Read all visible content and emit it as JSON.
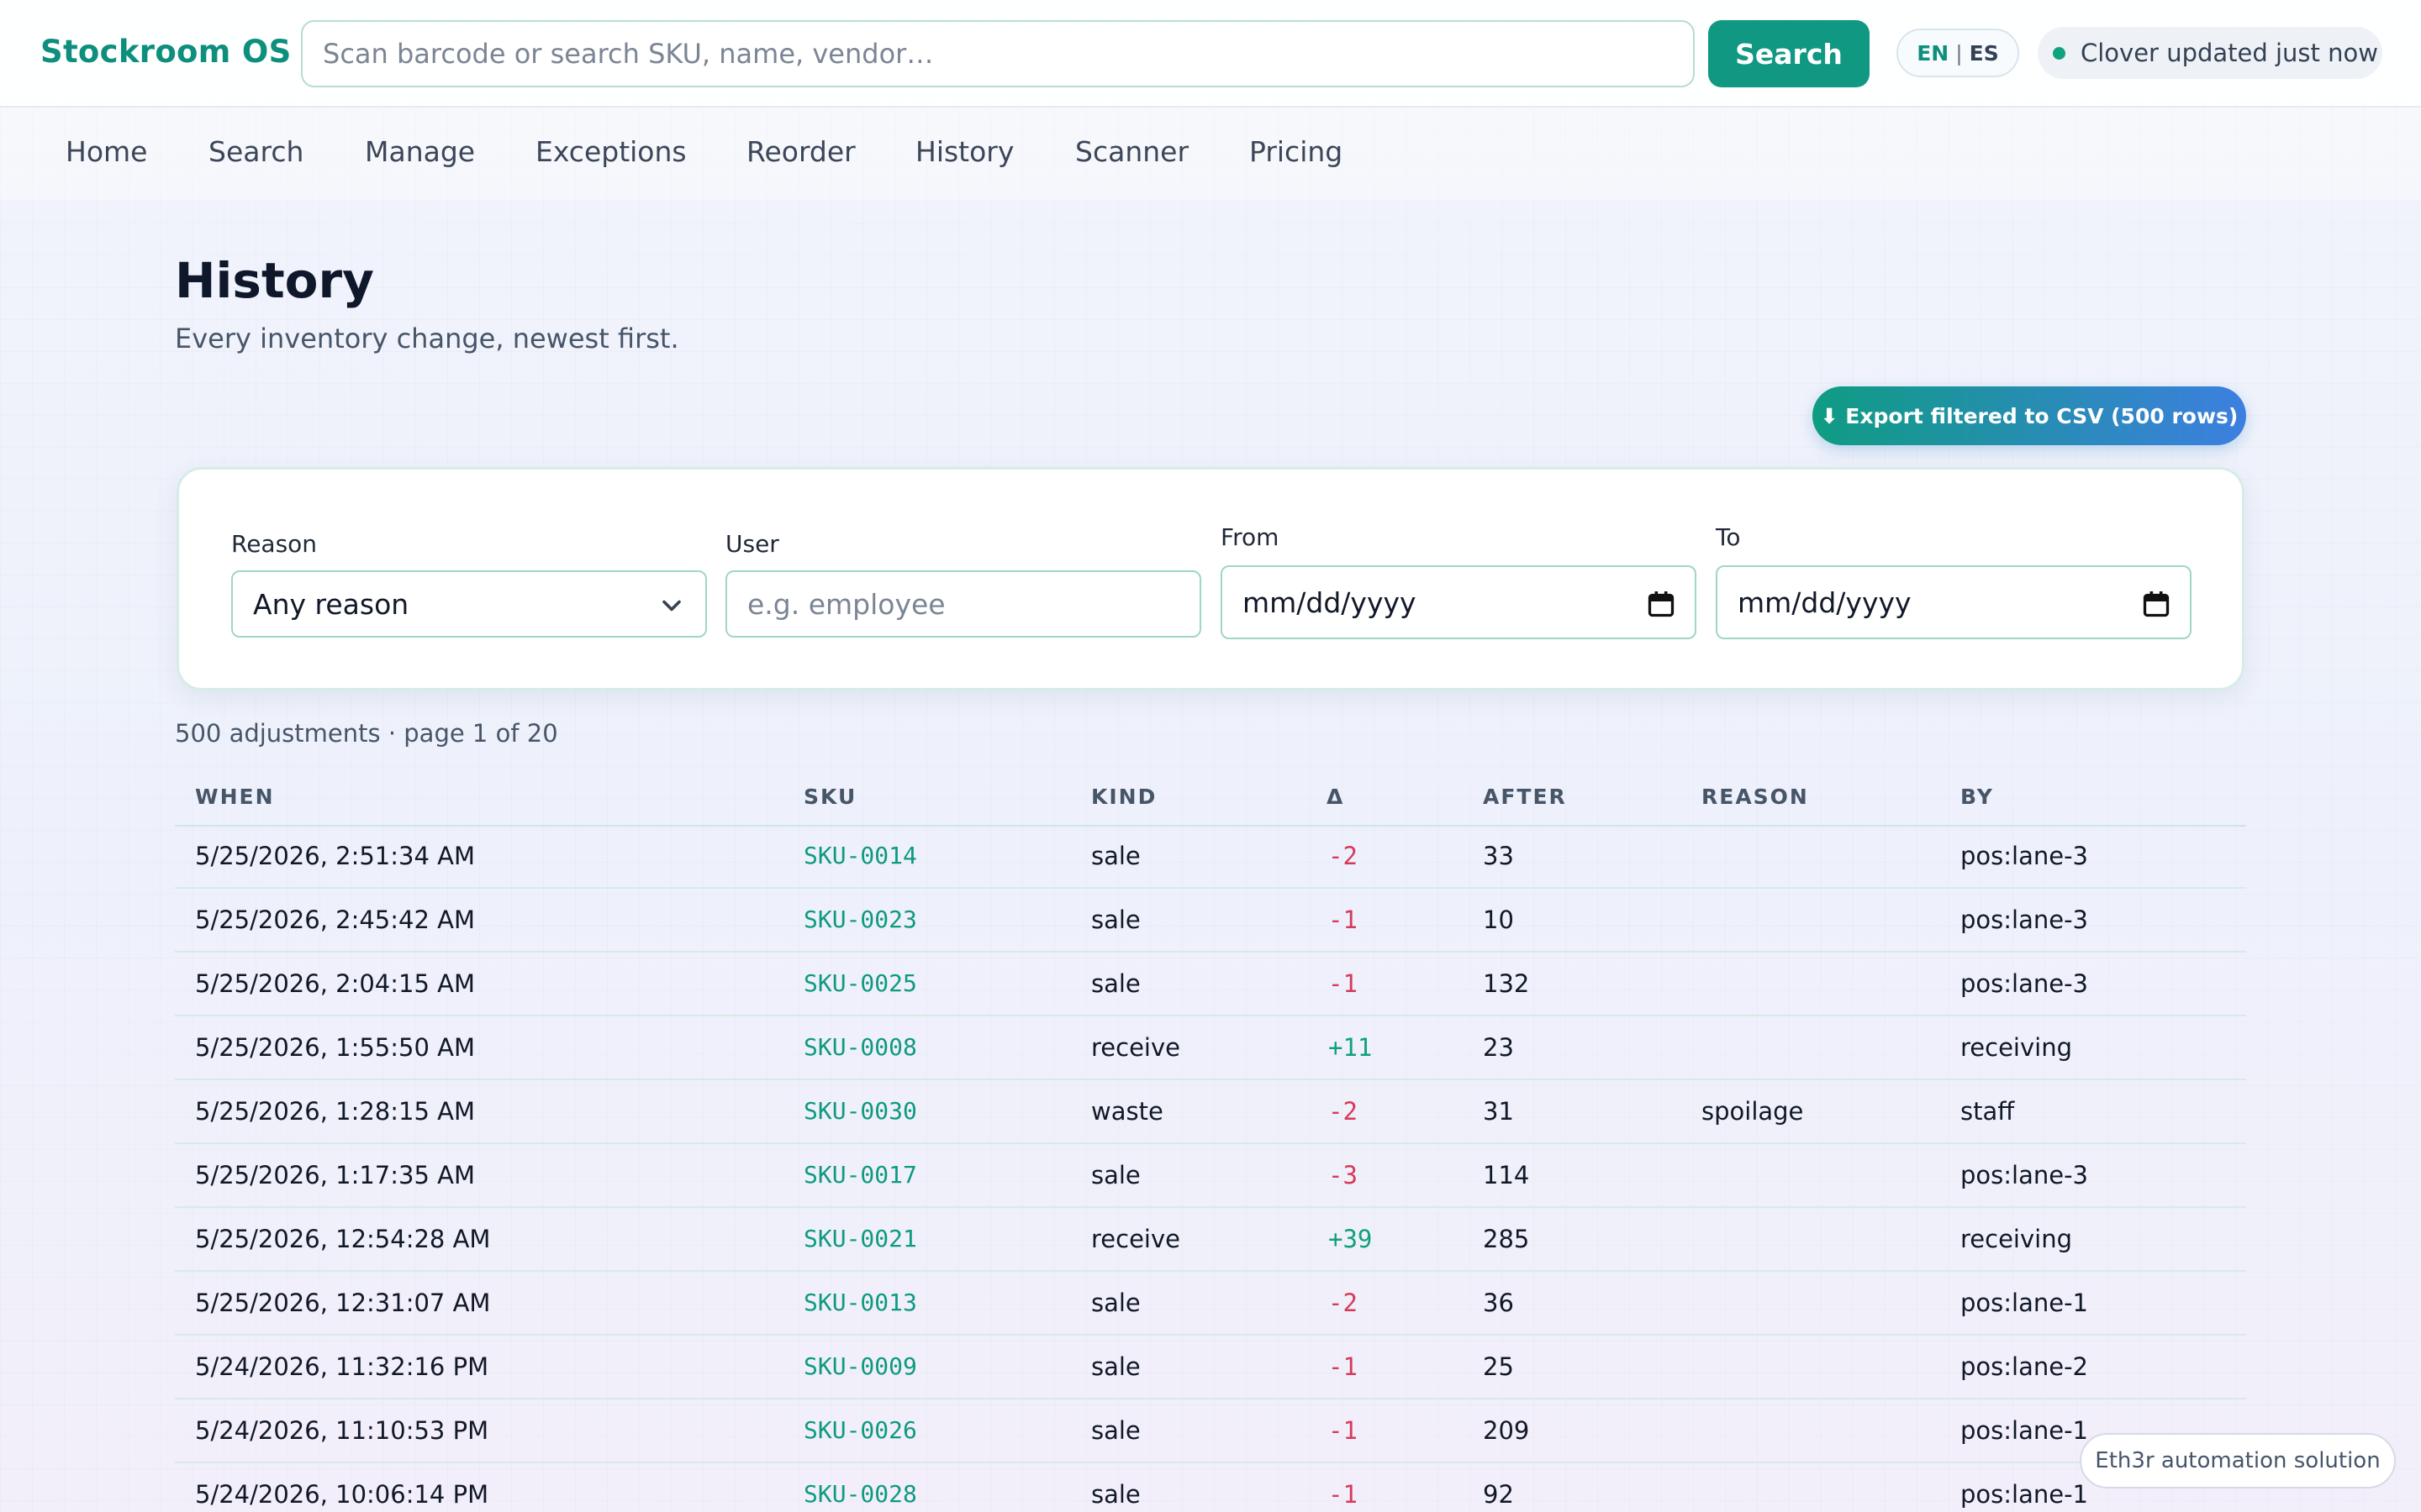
{
  "header": {
    "brand": "Stockroom OS",
    "search_placeholder": "Scan barcode or search SKU, name, vendor…",
    "search_button": "Search",
    "lang_en": "EN",
    "lang_sep": "|",
    "lang_es": "ES",
    "status": "Clover updated just now"
  },
  "nav": {
    "items": [
      "Home",
      "Search",
      "Manage",
      "Exceptions",
      "Reorder",
      "History",
      "Scanner",
      "Pricing"
    ]
  },
  "page": {
    "title": "History",
    "subtitle": "Every inventory change, newest first.",
    "export_button": "⬇ Export filtered to CSV (500 rows)"
  },
  "filters": {
    "reason_label": "Reason",
    "reason_value": "Any reason",
    "user_label": "User",
    "user_placeholder": "e.g. employee",
    "from_label": "From",
    "from_value": "mm/dd/yyyy",
    "to_label": "To",
    "to_value": "mm/dd/yyyy"
  },
  "table": {
    "summary": "500 adjustments · page 1 of 20",
    "columns": [
      "WHEN",
      "SKU",
      "KIND",
      "Δ",
      "AFTER",
      "REASON",
      "BY"
    ],
    "rows": [
      {
        "when": "5/25/2026, 2:51:34 AM",
        "sku": "SKU-0014",
        "kind": "sale",
        "delta": "-2",
        "after": "33",
        "reason": "",
        "by": "pos:lane-3"
      },
      {
        "when": "5/25/2026, 2:45:42 AM",
        "sku": "SKU-0023",
        "kind": "sale",
        "delta": "-1",
        "after": "10",
        "reason": "",
        "by": "pos:lane-3"
      },
      {
        "when": "5/25/2026, 2:04:15 AM",
        "sku": "SKU-0025",
        "kind": "sale",
        "delta": "-1",
        "after": "132",
        "reason": "",
        "by": "pos:lane-3"
      },
      {
        "when": "5/25/2026, 1:55:50 AM",
        "sku": "SKU-0008",
        "kind": "receive",
        "delta": "+11",
        "after": "23",
        "reason": "",
        "by": "receiving"
      },
      {
        "when": "5/25/2026, 1:28:15 AM",
        "sku": "SKU-0030",
        "kind": "waste",
        "delta": "-2",
        "after": "31",
        "reason": "spoilage",
        "by": "staff"
      },
      {
        "when": "5/25/2026, 1:17:35 AM",
        "sku": "SKU-0017",
        "kind": "sale",
        "delta": "-3",
        "after": "114",
        "reason": "",
        "by": "pos:lane-3"
      },
      {
        "when": "5/25/2026, 12:54:28 AM",
        "sku": "SKU-0021",
        "kind": "receive",
        "delta": "+39",
        "after": "285",
        "reason": "",
        "by": "receiving"
      },
      {
        "when": "5/25/2026, 12:31:07 AM",
        "sku": "SKU-0013",
        "kind": "sale",
        "delta": "-2",
        "after": "36",
        "reason": "",
        "by": "pos:lane-1"
      },
      {
        "when": "5/24/2026, 11:32:16 PM",
        "sku": "SKU-0009",
        "kind": "sale",
        "delta": "-1",
        "after": "25",
        "reason": "",
        "by": "pos:lane-2"
      },
      {
        "when": "5/24/2026, 11:10:53 PM",
        "sku": "SKU-0026",
        "kind": "sale",
        "delta": "-1",
        "after": "209",
        "reason": "",
        "by": "pos:lane-1"
      },
      {
        "when": "5/24/2026, 10:06:14 PM",
        "sku": "SKU-0028",
        "kind": "sale",
        "delta": "-1",
        "after": "92",
        "reason": "",
        "by": "pos:lane-1"
      }
    ]
  },
  "badge": {
    "text": "Eth3r automation solution"
  }
}
